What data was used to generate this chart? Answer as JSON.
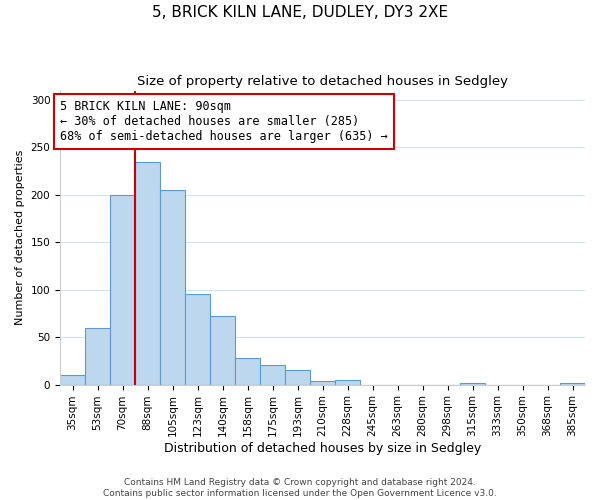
{
  "title": "5, BRICK KILN LANE, DUDLEY, DY3 2XE",
  "subtitle": "Size of property relative to detached houses in Sedgley",
  "xlabel": "Distribution of detached houses by size in Sedgley",
  "ylabel": "Number of detached properties",
  "bin_labels": [
    "35sqm",
    "53sqm",
    "70sqm",
    "88sqm",
    "105sqm",
    "123sqm",
    "140sqm",
    "158sqm",
    "175sqm",
    "193sqm",
    "210sqm",
    "228sqm",
    "245sqm",
    "263sqm",
    "280sqm",
    "298sqm",
    "315sqm",
    "333sqm",
    "350sqm",
    "368sqm",
    "385sqm"
  ],
  "bar_values": [
    10,
    60,
    200,
    235,
    205,
    95,
    72,
    28,
    21,
    15,
    4,
    5,
    0,
    0,
    0,
    0,
    2,
    0,
    0,
    0,
    2
  ],
  "bar_color": "#bdd7ee",
  "bar_edge_color": "#5b9bd5",
  "vline_x_index": 3,
  "vline_color": "#cc0000",
  "annotation_text": "5 BRICK KILN LANE: 90sqm\n← 30% of detached houses are smaller (285)\n68% of semi-detached houses are larger (635) →",
  "annotation_box_edge_color": "#cc0000",
  "annotation_box_face_color": "#ffffff",
  "ylim": [
    0,
    310
  ],
  "yticks": [
    0,
    50,
    100,
    150,
    200,
    250,
    300
  ],
  "grid_color": "#d0e4f0",
  "background_color": "#ffffff",
  "footer_line1": "Contains HM Land Registry data © Crown copyright and database right 2024.",
  "footer_line2": "Contains public sector information licensed under the Open Government Licence v3.0.",
  "title_fontsize": 11,
  "subtitle_fontsize": 9.5,
  "xlabel_fontsize": 9,
  "ylabel_fontsize": 8,
  "tick_fontsize": 7.5,
  "annotation_fontsize": 8.5,
  "footer_fontsize": 6.5
}
